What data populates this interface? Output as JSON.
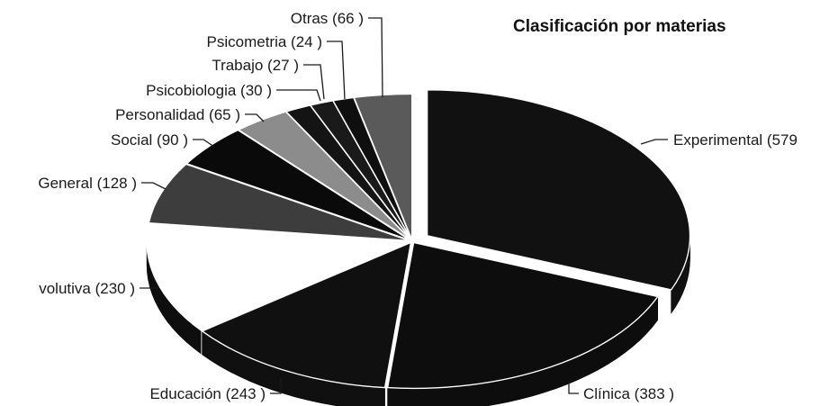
{
  "chart_data": {
    "type": "pie",
    "title": "Clasificación por materias",
    "slices": [
      {
        "name": "Experimental",
        "value": 579,
        "label": "Experimental (579",
        "color": "#111111"
      },
      {
        "name": "Clínica",
        "value": 383,
        "label": "Clínica (383 )",
        "color": "#0d0d0d"
      },
      {
        "name": "Educación",
        "value": 243,
        "label": "Educación (243 )",
        "color": "#101010"
      },
      {
        "name": "Evolutiva",
        "value": 230,
        "label": "volutiva (230 )",
        "color": "#ffffff"
      },
      {
        "name": "General",
        "value": 128,
        "label": "General (128 )",
        "color": "#3d3d3d"
      },
      {
        "name": "Social",
        "value": 90,
        "label": "Social (90 )",
        "color": "#0a0a0a"
      },
      {
        "name": "Personalidad",
        "value": 65,
        "label": "Personalidad (65 )",
        "color": "#8c8c8c"
      },
      {
        "name": "Psicobiologia",
        "value": 30,
        "label": "Psicobiologia (30 )",
        "color": "#141414"
      },
      {
        "name": "Trabajo",
        "value": 27,
        "label": "Trabajo (27 )",
        "color": "#1a1a1a"
      },
      {
        "name": "Psicometria",
        "value": 24,
        "label": "Psicometria (24 )",
        "color": "#0f0f0f"
      },
      {
        "name": "Otras",
        "value": 66,
        "label": "Otras (66 )",
        "color": "#5a5a5a"
      }
    ],
    "legend": "none",
    "style": "3d-exploded"
  }
}
